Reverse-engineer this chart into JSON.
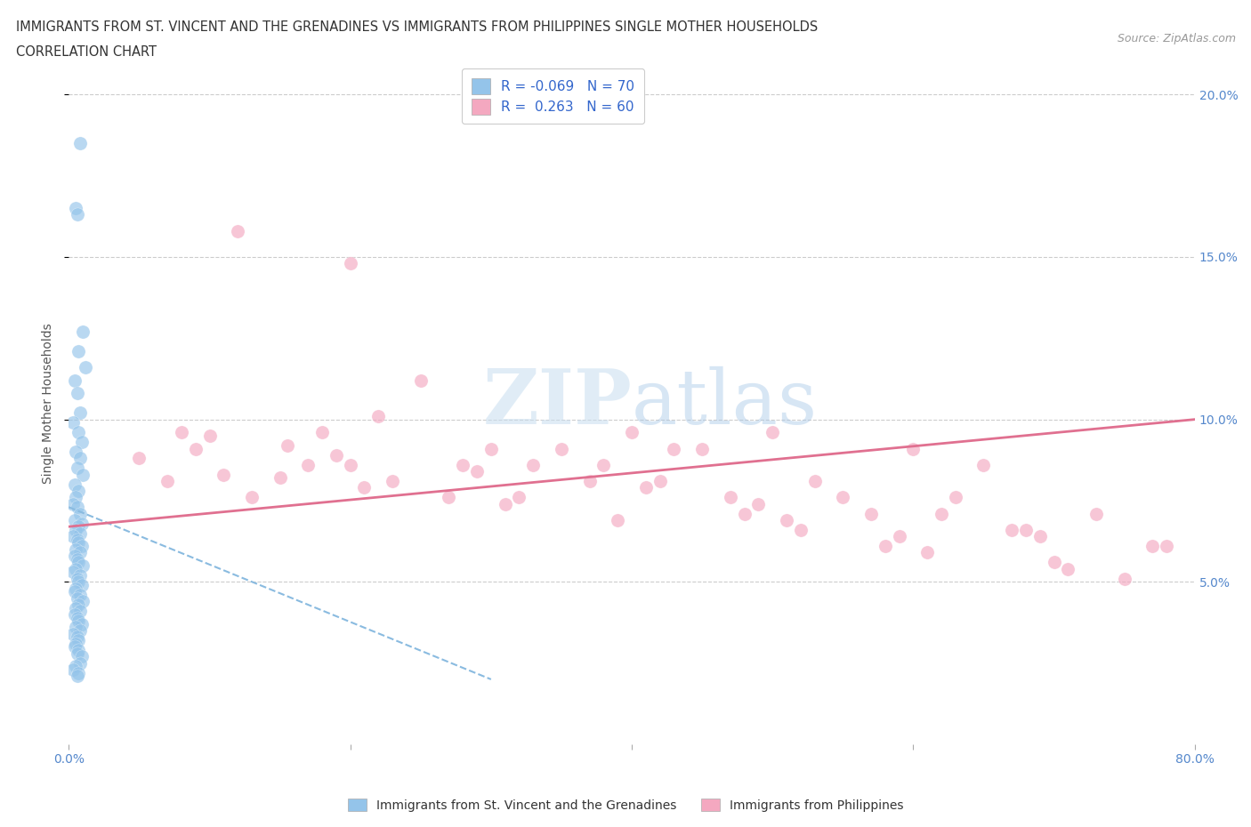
{
  "title_line1": "IMMIGRANTS FROM ST. VINCENT AND THE GRENADINES VS IMMIGRANTS FROM PHILIPPINES SINGLE MOTHER HOUSEHOLDS",
  "title_line2": "CORRELATION CHART",
  "source_text": "Source: ZipAtlas.com",
  "ylabel": "Single Mother Households",
  "watermark_zip": "ZIP",
  "watermark_atlas": "atlas",
  "xlim": [
    0.0,
    0.8
  ],
  "ylim": [
    0.0,
    0.21
  ],
  "legend_R1": "-0.069",
  "legend_N1": "70",
  "legend_R2": "0.263",
  "legend_N2": "60",
  "color_blue": "#94C4EA",
  "color_pink": "#F4A8C0",
  "line_blue": "#8ABBE0",
  "line_pink": "#E07090",
  "legend_label1": "Immigrants from St. Vincent and the Grenadines",
  "legend_label2": "Immigrants from Philippines",
  "blue_points_x": [
    0.008,
    0.005,
    0.006,
    0.01,
    0.007,
    0.012,
    0.004,
    0.006,
    0.008,
    0.003,
    0.007,
    0.009,
    0.005,
    0.008,
    0.006,
    0.01,
    0.004,
    0.007,
    0.005,
    0.003,
    0.006,
    0.008,
    0.004,
    0.009,
    0.007,
    0.005,
    0.008,
    0.003,
    0.006,
    0.007,
    0.009,
    0.005,
    0.008,
    0.004,
    0.006,
    0.007,
    0.01,
    0.005,
    0.003,
    0.008,
    0.006,
    0.007,
    0.009,
    0.005,
    0.004,
    0.008,
    0.006,
    0.01,
    0.007,
    0.005,
    0.008,
    0.004,
    0.006,
    0.007,
    0.009,
    0.005,
    0.008,
    0.003,
    0.006,
    0.007,
    0.005,
    0.004,
    0.007,
    0.006,
    0.009,
    0.008,
    0.005,
    0.003,
    0.007,
    0.006
  ],
  "blue_points_y": [
    0.185,
    0.165,
    0.163,
    0.127,
    0.121,
    0.116,
    0.112,
    0.108,
    0.102,
    0.099,
    0.096,
    0.093,
    0.09,
    0.088,
    0.085,
    0.083,
    0.08,
    0.078,
    0.076,
    0.074,
    0.073,
    0.071,
    0.069,
    0.068,
    0.067,
    0.066,
    0.065,
    0.064,
    0.063,
    0.062,
    0.061,
    0.06,
    0.059,
    0.058,
    0.057,
    0.056,
    0.055,
    0.054,
    0.053,
    0.052,
    0.051,
    0.05,
    0.049,
    0.048,
    0.047,
    0.046,
    0.045,
    0.044,
    0.043,
    0.042,
    0.041,
    0.04,
    0.039,
    0.038,
    0.037,
    0.036,
    0.035,
    0.034,
    0.033,
    0.032,
    0.031,
    0.03,
    0.029,
    0.028,
    0.027,
    0.025,
    0.024,
    0.023,
    0.022,
    0.021
  ],
  "pink_points_x": [
    0.05,
    0.1,
    0.12,
    0.155,
    0.08,
    0.2,
    0.25,
    0.18,
    0.3,
    0.22,
    0.28,
    0.35,
    0.15,
    0.4,
    0.32,
    0.45,
    0.38,
    0.5,
    0.42,
    0.55,
    0.48,
    0.6,
    0.52,
    0.65,
    0.58,
    0.7,
    0.62,
    0.75,
    0.68,
    0.78,
    0.07,
    0.13,
    0.17,
    0.23,
    0.27,
    0.33,
    0.37,
    0.43,
    0.47,
    0.53,
    0.57,
    0.63,
    0.67,
    0.73,
    0.77,
    0.09,
    0.11,
    0.19,
    0.21,
    0.29,
    0.31,
    0.39,
    0.41,
    0.49,
    0.51,
    0.59,
    0.61,
    0.69,
    0.71,
    0.2
  ],
  "pink_points_y": [
    0.088,
    0.095,
    0.158,
    0.092,
    0.096,
    0.086,
    0.112,
    0.096,
    0.091,
    0.101,
    0.086,
    0.091,
    0.082,
    0.096,
    0.076,
    0.091,
    0.086,
    0.096,
    0.081,
    0.076,
    0.071,
    0.091,
    0.066,
    0.086,
    0.061,
    0.056,
    0.071,
    0.051,
    0.066,
    0.061,
    0.081,
    0.076,
    0.086,
    0.081,
    0.076,
    0.086,
    0.081,
    0.091,
    0.076,
    0.081,
    0.071,
    0.076,
    0.066,
    0.071,
    0.061,
    0.091,
    0.083,
    0.089,
    0.079,
    0.084,
    0.074,
    0.069,
    0.079,
    0.074,
    0.069,
    0.064,
    0.059,
    0.064,
    0.054,
    0.148
  ],
  "blue_trend_x": [
    0.0,
    0.3
  ],
  "blue_trend_y": [
    0.073,
    0.02
  ],
  "pink_trend_x": [
    0.0,
    0.8
  ],
  "pink_trend_y": [
    0.067,
    0.1
  ]
}
